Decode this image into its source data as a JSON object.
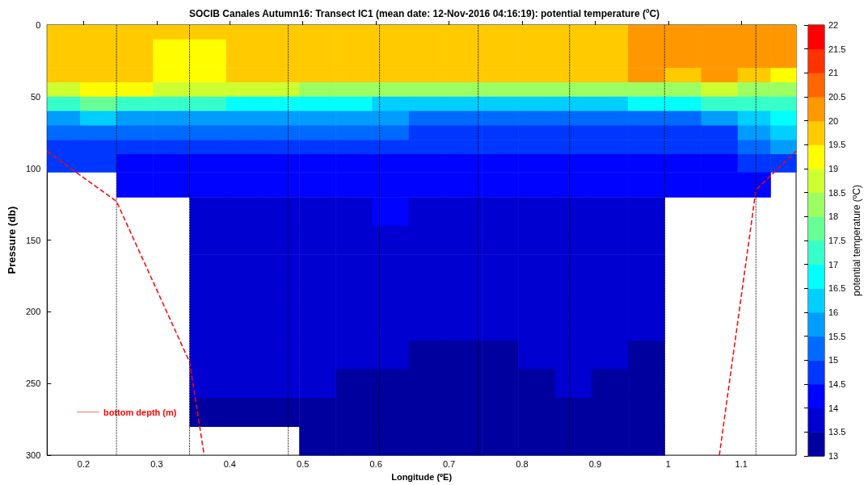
{
  "chart_data": {
    "type": "heatmap",
    "title": "SOCIB Canales Autumn16: Transect IC1 (mean date: 12-Nov-2016 04:16:19): potential temperature (ºC)",
    "xlabel": "Longitude (ºE)",
    "ylabel": "Pressure (db)",
    "clabel": "potential temperature (ºC)",
    "x": [
      0.17,
      0.22,
      0.27,
      0.32,
      0.37,
      0.42,
      0.47,
      0.52,
      0.57,
      0.62,
      0.67,
      0.72,
      0.77,
      0.82,
      0.87,
      0.92,
      0.97,
      1.02,
      1.07,
      1.12,
      1.16
    ],
    "y": [
      5,
      15,
      25,
      35,
      45,
      55,
      65,
      75,
      85,
      95,
      110,
      130,
      150,
      170,
      190,
      210,
      230,
      250,
      270,
      290
    ],
    "cells": [
      [
        19.7,
        19.7,
        19.7,
        19.7,
        19.7,
        19.7,
        19.7,
        19.7,
        19.7,
        19.7,
        19.7,
        19.7,
        19.7,
        19.7,
        19.7,
        19.7,
        20.2,
        20.2,
        20.2,
        20.2,
        20.2
      ],
      [
        19.7,
        19.7,
        19.7,
        19.3,
        19.3,
        19.7,
        19.7,
        19.7,
        19.7,
        19.7,
        19.7,
        19.7,
        19.7,
        19.7,
        19.7,
        19.7,
        20.2,
        20.2,
        20.2,
        20.2,
        20.2
      ],
      [
        19.7,
        19.7,
        19.7,
        19.3,
        19.3,
        19.7,
        19.7,
        19.7,
        19.7,
        19.7,
        19.7,
        19.7,
        19.7,
        19.7,
        19.7,
        19.7,
        20.2,
        20.2,
        20.2,
        20.2,
        20.2
      ],
      [
        19.7,
        19.7,
        19.7,
        19.3,
        19.3,
        19.7,
        19.7,
        19.7,
        19.7,
        19.7,
        19.7,
        19.7,
        19.7,
        19.7,
        19.7,
        19.7,
        20.2,
        19.8,
        20.2,
        19.5,
        19.0
      ],
      [
        18.7,
        19.0,
        19.0,
        18.7,
        18.8,
        18.5,
        18.5,
        18.3,
        18.3,
        18.0,
        18.0,
        18.0,
        18.0,
        18.0,
        18.0,
        18.3,
        18.3,
        18.0,
        18.5,
        18.0,
        18.0
      ],
      [
        17.0,
        17.5,
        17.0,
        17.2,
        17.0,
        16.8,
        16.8,
        16.5,
        16.5,
        16.2,
        16.0,
        16.0,
        16.0,
        16.0,
        16.0,
        16.2,
        16.5,
        16.5,
        17.0,
        17.0,
        17.0
      ],
      [
        15.7,
        16.2,
        15.8,
        15.8,
        15.7,
        15.6,
        15.6,
        15.5,
        15.5,
        15.5,
        15.3,
        15.3,
        15.3,
        15.3,
        15.3,
        15.3,
        15.3,
        15.3,
        15.5,
        16.0,
        16.5
      ],
      [
        15.2,
        15.2,
        15.2,
        15.0,
        15.0,
        15.0,
        15.0,
        15.0,
        15.0,
        15.0,
        14.8,
        14.8,
        14.8,
        14.8,
        14.8,
        14.8,
        14.8,
        14.8,
        14.8,
        15.5,
        16.0
      ],
      [
        14.7,
        14.7,
        14.7,
        14.6,
        14.6,
        14.6,
        14.6,
        14.6,
        14.6,
        14.6,
        14.6,
        14.6,
        14.6,
        14.6,
        14.6,
        14.6,
        14.6,
        14.6,
        14.6,
        15.0,
        15.5
      ],
      [
        14.6,
        14.6,
        14.2,
        14.2,
        14.2,
        14.2,
        14.2,
        14.2,
        14.2,
        14.2,
        14.3,
        14.3,
        14.3,
        14.3,
        14.3,
        14.3,
        14.3,
        14.3,
        14.3,
        14.6,
        14.8
      ],
      [
        null,
        null,
        14.2,
        14.2,
        14.2,
        14.2,
        14.2,
        14.2,
        14.2,
        14.2,
        14.2,
        14.2,
        14.2,
        14.2,
        14.2,
        14.2,
        14.2,
        14.2,
        14.2,
        14.2,
        null
      ],
      [
        null,
        null,
        null,
        null,
        13.8,
        13.8,
        13.8,
        13.8,
        13.8,
        14.2,
        13.8,
        13.8,
        13.8,
        13.8,
        13.8,
        13.8,
        13.8,
        null,
        null,
        null,
        null
      ],
      [
        null,
        null,
        null,
        null,
        13.8,
        13.8,
        13.8,
        13.8,
        13.8,
        13.8,
        13.8,
        13.8,
        13.8,
        13.8,
        13.8,
        13.8,
        13.8,
        null,
        null,
        null,
        null
      ],
      [
        null,
        null,
        null,
        null,
        13.8,
        13.8,
        13.8,
        13.8,
        13.8,
        13.8,
        13.8,
        13.8,
        13.8,
        13.8,
        13.8,
        13.8,
        13.8,
        null,
        null,
        null,
        null
      ],
      [
        null,
        null,
        null,
        null,
        13.8,
        13.8,
        13.8,
        13.8,
        13.8,
        13.8,
        13.8,
        13.8,
        13.8,
        13.8,
        13.8,
        13.8,
        13.8,
        null,
        null,
        null,
        null
      ],
      [
        null,
        null,
        null,
        null,
        13.8,
        13.8,
        13.8,
        13.8,
        13.8,
        13.8,
        13.8,
        13.8,
        13.8,
        13.8,
        13.8,
        13.8,
        13.8,
        null,
        null,
        null,
        null
      ],
      [
        null,
        null,
        null,
        null,
        13.8,
        13.8,
        13.8,
        13.8,
        13.8,
        13.8,
        13.3,
        13.3,
        13.3,
        13.8,
        13.8,
        13.8,
        13.3,
        null,
        null,
        null,
        null
      ],
      [
        null,
        null,
        null,
        null,
        13.8,
        13.8,
        13.8,
        13.8,
        13.3,
        13.3,
        13.3,
        13.3,
        13.3,
        13.3,
        13.8,
        13.3,
        13.3,
        null,
        null,
        null,
        null
      ],
      [
        null,
        null,
        null,
        null,
        13.3,
        13.3,
        13.3,
        13.3,
        13.3,
        13.3,
        13.3,
        13.3,
        13.3,
        13.3,
        13.3,
        13.3,
        13.3,
        null,
        null,
        null,
        null
      ],
      [
        null,
        null,
        null,
        null,
        null,
        null,
        null,
        13.3,
        13.3,
        13.3,
        13.3,
        13.3,
        13.3,
        13.3,
        13.3,
        13.3,
        13.3,
        null,
        null,
        null,
        null
      ]
    ],
    "clim": [
      13,
      22
    ],
    "cticks": [
      13,
      13.5,
      14,
      14.5,
      15,
      15.5,
      16,
      16.5,
      17,
      17.5,
      18,
      18.5,
      19,
      19.5,
      20,
      20.5,
      21,
      21.5,
      22
    ],
    "xlim": [
      0.15,
      1.175
    ],
    "xticks": [
      0.2,
      0.3,
      0.4,
      0.5,
      0.6,
      0.7,
      0.8,
      0.9,
      1,
      1.1
    ],
    "ylim": [
      300,
      0
    ],
    "yticks": [
      0,
      50,
      100,
      150,
      200,
      250,
      300
    ],
    "series": [
      {
        "name": "bottom depth (m)",
        "type": "line",
        "color": "#ff0000",
        "line_style": "dashed",
        "marker": "none",
        "x": [
          0.15,
          0.245,
          0.345,
          0.365,
          0.7,
          1.07,
          1.12,
          1.175
        ],
        "values": [
          88,
          123,
          235,
          300,
          null,
          300,
          115,
          88
        ]
      }
    ],
    "ref_lines": [
      {
        "axis": "x",
        "value": 0.245,
        "color": "#000000",
        "line_style": "dotted"
      },
      {
        "axis": "x",
        "value": 0.345,
        "color": "#000000",
        "line_style": "dotted"
      },
      {
        "axis": "x",
        "value": 0.48,
        "color": "#000000",
        "line_style": "dotted"
      },
      {
        "axis": "x",
        "value": 0.605,
        "color": "#000000",
        "line_style": "dotted"
      },
      {
        "axis": "x",
        "value": 0.74,
        "color": "#000000",
        "line_style": "dotted"
      },
      {
        "axis": "x",
        "value": 0.865,
        "color": "#000000",
        "line_style": "dotted"
      },
      {
        "axis": "x",
        "value": 0.995,
        "color": "#000000",
        "line_style": "dotted"
      },
      {
        "axis": "x",
        "value": 1.12,
        "color": "#000000",
        "line_style": "dotted"
      }
    ],
    "grid": false,
    "legend": "bottom left"
  }
}
